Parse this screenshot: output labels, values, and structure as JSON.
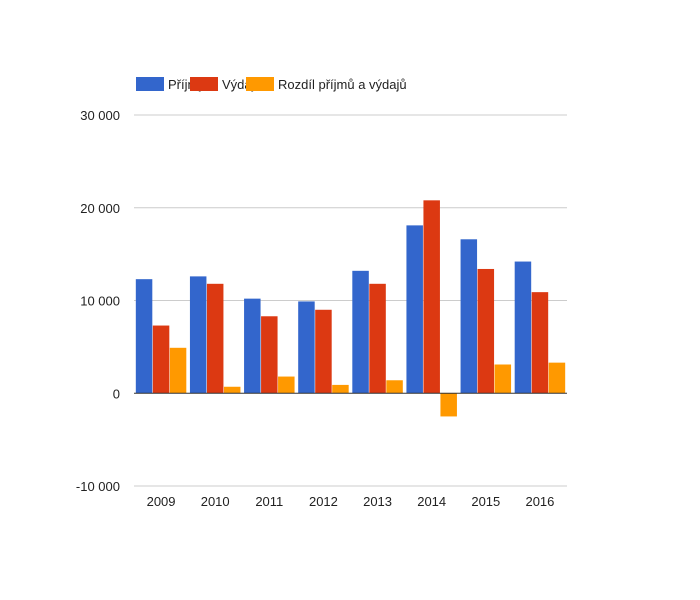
{
  "chart_data": {
    "type": "bar",
    "categories": [
      "2009",
      "2010",
      "2011",
      "2012",
      "2013",
      "2014",
      "2015",
      "2016"
    ],
    "series": [
      {
        "name": "Příjmy",
        "color": "#3366cc",
        "values": [
          12300,
          12600,
          10200,
          9900,
          13200,
          18100,
          16600,
          14200
        ]
      },
      {
        "name": "Výdaje",
        "color": "#dc3912",
        "values": [
          7300,
          11800,
          8300,
          9000,
          11800,
          20800,
          13400,
          10900
        ]
      },
      {
        "name": "Rozdíl příjmů a výdajů",
        "color": "#ff9900",
        "values": [
          4900,
          700,
          1800,
          900,
          1400,
          -2500,
          3100,
          3300
        ]
      }
    ],
    "yticks": [
      -10000,
      0,
      10000,
      20000,
      30000
    ],
    "ytick_labels": [
      "-10 000",
      "0",
      "10 000",
      "20 000",
      "30 000"
    ],
    "ylim": [
      -10000,
      30000
    ],
    "grid": true,
    "legend_position": "top-left"
  }
}
